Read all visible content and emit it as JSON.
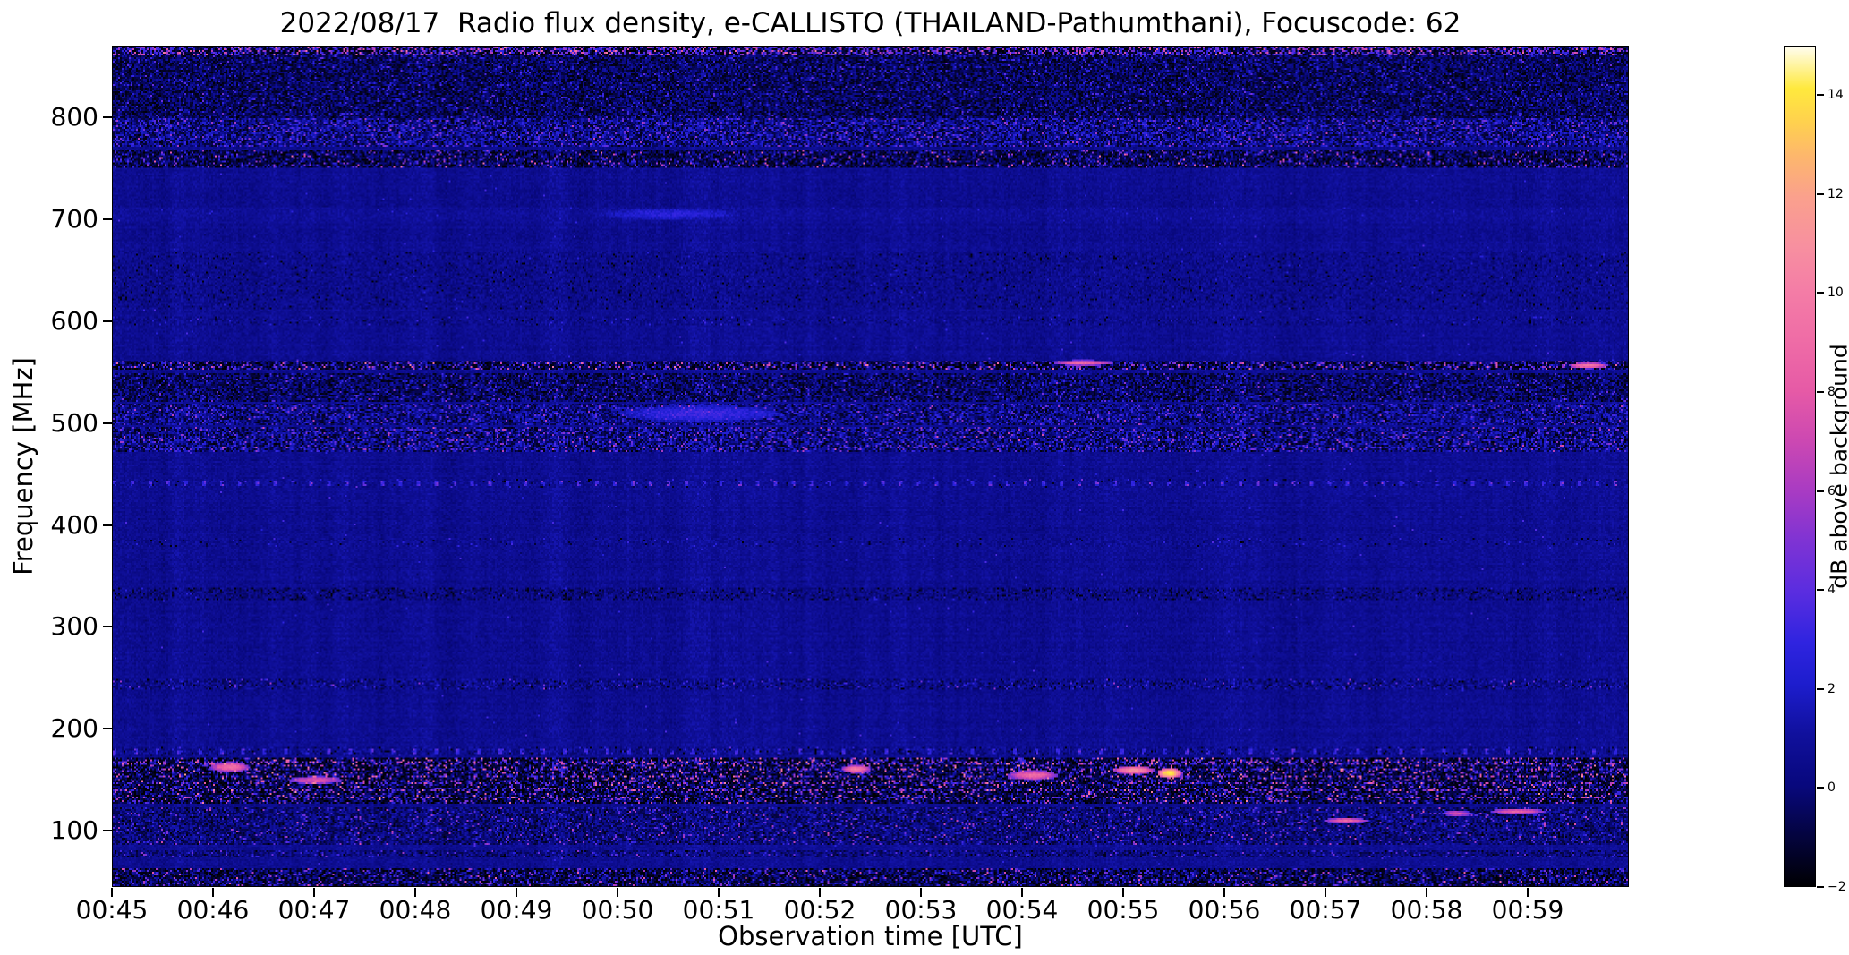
{
  "figure": {
    "date": "2022/08/17",
    "instrument": "e-CALLISTO",
    "station": "THAILAND-Pathumthani",
    "focuscode": "62"
  },
  "chart_data": {
    "type": "heatmap",
    "title": "2022/08/17  Radio flux density, e-CALLISTO (THAILAND-Pathumthani), Focuscode: 62",
    "xlabel": "Observation time [UTC]",
    "ylabel": "Frequency [MHz]",
    "colorbar_label": "dB above background",
    "x_range_minutes": [
      45,
      60
    ],
    "x_ticks": [
      {
        "minute": 45,
        "label": "00:45"
      },
      {
        "minute": 46,
        "label": "00:46"
      },
      {
        "minute": 47,
        "label": "00:47"
      },
      {
        "minute": 48,
        "label": "00:48"
      },
      {
        "minute": 49,
        "label": "00:49"
      },
      {
        "minute": 50,
        "label": "00:50"
      },
      {
        "minute": 51,
        "label": "00:51"
      },
      {
        "minute": 52,
        "label": "00:52"
      },
      {
        "minute": 53,
        "label": "00:53"
      },
      {
        "minute": 54,
        "label": "00:54"
      },
      {
        "minute": 55,
        "label": "00:55"
      },
      {
        "minute": 56,
        "label": "00:56"
      },
      {
        "minute": 57,
        "label": "00:57"
      },
      {
        "minute": 58,
        "label": "00:58"
      },
      {
        "minute": 59,
        "label": "00:59"
      }
    ],
    "freq_range": [
      45,
      870
    ],
    "y_ticks": [
      {
        "value": 800,
        "label": "800"
      },
      {
        "value": 700,
        "label": "700"
      },
      {
        "value": 600,
        "label": "600"
      },
      {
        "value": 500,
        "label": "500"
      },
      {
        "value": 400,
        "label": "400"
      },
      {
        "value": 300,
        "label": "300"
      },
      {
        "value": 200,
        "label": "200"
      },
      {
        "value": 100,
        "label": "100"
      }
    ],
    "value_range": [
      -2,
      15
    ],
    "colorbar_ticks": [
      {
        "value": 14,
        "label": "14"
      },
      {
        "value": 12,
        "label": "12"
      },
      {
        "value": 10,
        "label": "10"
      },
      {
        "value": 8,
        "label": "8"
      },
      {
        "value": 6,
        "label": "6"
      },
      {
        "value": 4,
        "label": "4"
      },
      {
        "value": 2,
        "label": "2"
      },
      {
        "value": 0,
        "label": "0"
      },
      {
        "value": -2,
        "label": "−2"
      }
    ],
    "colormap": [
      [
        0.0,
        "#000003"
      ],
      [
        0.06,
        "#04043f"
      ],
      [
        0.12,
        "#08087d"
      ],
      [
        0.18,
        "#10109c"
      ],
      [
        0.24,
        "#1d1dcd"
      ],
      [
        0.29,
        "#2f24e0"
      ],
      [
        0.35,
        "#5a2de0"
      ],
      [
        0.41,
        "#7e33d4"
      ],
      [
        0.47,
        "#a83bc3"
      ],
      [
        0.53,
        "#cc48b2"
      ],
      [
        0.59,
        "#e65aa6"
      ],
      [
        0.65,
        "#ef6ca6"
      ],
      [
        0.71,
        "#f47da6"
      ],
      [
        0.76,
        "#f78fa0"
      ],
      [
        0.82,
        "#faa08d"
      ],
      [
        0.87,
        "#fdb76c"
      ],
      [
        0.91,
        "#ffd14e"
      ],
      [
        0.95,
        "#ffe93d"
      ],
      [
        1.0,
        "#fffdf0"
      ]
    ],
    "background_db": 0.7,
    "rfi_bands": [
      {
        "f_lo": 862,
        "f_hi": 870,
        "base": -1.2,
        "noise": 1.2,
        "dark_p": 0.25,
        "speckle_p": 0.45,
        "speckle_max": 11
      },
      {
        "f_lo": 800,
        "f_hi": 862,
        "base": -0.2,
        "noise": 1.6,
        "dark_p": 0.22,
        "speckle_p": 0.05,
        "speckle_max": 5
      },
      {
        "f_lo": 772,
        "f_hi": 800,
        "base": 0.4,
        "noise": 2.0,
        "dark_p": 0.1,
        "speckle_p": 0.14,
        "speckle_max": 7
      },
      {
        "f_lo": 752,
        "f_hi": 768,
        "base": -0.4,
        "noise": 1.8,
        "dark_p": 0.25,
        "speckle_p": 0.1,
        "speckle_max": 10
      },
      {
        "f_lo": 700,
        "f_hi": 712,
        "base": 0.9,
        "noise": 0.5,
        "dark_p": 0.0,
        "speckle_p": 0.004,
        "speckle_max": 3
      },
      {
        "f_lo": 612,
        "f_hi": 668,
        "base": 0.55,
        "noise": 0.75,
        "dark_p": 0.04,
        "speckle_p": 0.003,
        "speckle_max": 2.5
      },
      {
        "f_lo": 596,
        "f_hi": 606,
        "base": 0.6,
        "noise": 0.8,
        "dark_p": 0.03,
        "speckle_p": 0.012,
        "speckle_max": 4
      },
      {
        "f_lo": 552,
        "f_hi": 562,
        "base": -0.5,
        "noise": 2.2,
        "dark_p": 0.28,
        "speckle_p": 0.2,
        "speckle_max": 11
      },
      {
        "f_lo": 520,
        "f_hi": 549,
        "base": -0.1,
        "noise": 1.7,
        "dark_p": 0.18,
        "speckle_p": 0.05,
        "speckle_max": 6
      },
      {
        "f_lo": 498,
        "f_hi": 519,
        "base": 0.4,
        "noise": 1.8,
        "dark_p": 0.08,
        "speckle_p": 0.09,
        "speckle_max": 7
      },
      {
        "f_lo": 472,
        "f_hi": 497,
        "base": 0.3,
        "noise": 2.0,
        "dark_p": 0.1,
        "speckle_p": 0.13,
        "speckle_max": 8
      },
      {
        "f_lo": 436,
        "f_hi": 445,
        "base": 0.7,
        "noise": 0.7,
        "dark_p": 0.02,
        "speckle_p": 0.03,
        "speckle_max": 6,
        "dots_period": 10,
        "dots_duty": 2
      },
      {
        "f_lo": 378,
        "f_hi": 388,
        "base": 0.7,
        "noise": 0.7,
        "dark_p": 0.02,
        "speckle_p": 0.015,
        "speckle_max": 4
      },
      {
        "f_lo": 326,
        "f_hi": 338,
        "base": 0.4,
        "noise": 0.9,
        "dark_p": 0.12,
        "speckle_p": 0.01,
        "speckle_max": 3
      },
      {
        "f_lo": 237,
        "f_hi": 249,
        "base": 0.5,
        "noise": 1.1,
        "dark_p": 0.06,
        "speckle_p": 0.035,
        "speckle_max": 7
      },
      {
        "f_lo": 172,
        "f_hi": 181,
        "base": 0.6,
        "noise": 0.9,
        "dark_p": 0.05,
        "speckle_p": 0.04,
        "speckle_max": 5,
        "dots_period": 12,
        "dots_duty": 2
      },
      {
        "f_lo": 125,
        "f_hi": 170,
        "base": -0.7,
        "noise": 2.2,
        "dark_p": 0.3,
        "speckle_p": 0.16,
        "speckle_max": 12,
        "lines": [
          166,
          159,
          152,
          145,
          138,
          131
        ]
      },
      {
        "f_lo": 85,
        "f_hi": 122,
        "base": 0.2,
        "noise": 1.4,
        "dark_p": 0.1,
        "speckle_p": 0.07,
        "speckle_max": 8
      },
      {
        "f_lo": 72,
        "f_hi": 80,
        "base": 0.3,
        "noise": 1.2,
        "dark_p": 0.08,
        "speckle_p": 0.05,
        "speckle_max": 6
      },
      {
        "f_lo": 45,
        "f_hi": 62,
        "base": -0.4,
        "noise": 2.0,
        "dark_p": 0.25,
        "speckle_p": 0.13,
        "speckle_max": 9
      }
    ],
    "hotspots": [
      {
        "t": 46.15,
        "f": 163,
        "dt": 0.2,
        "df": 5,
        "db": 9.5
      },
      {
        "t": 47.0,
        "f": 150,
        "dt": 0.28,
        "df": 4,
        "db": 8.0
      },
      {
        "t": 52.35,
        "f": 161,
        "dt": 0.15,
        "df": 4,
        "db": 10.0
      },
      {
        "t": 54.1,
        "f": 155,
        "dt": 0.25,
        "df": 5,
        "db": 9.0
      },
      {
        "t": 55.1,
        "f": 160,
        "dt": 0.2,
        "df": 4,
        "db": 11.0
      },
      {
        "t": 55.45,
        "f": 157,
        "dt": 0.12,
        "df": 5,
        "db": 14.5
      },
      {
        "t": 57.2,
        "f": 110,
        "dt": 0.22,
        "df": 3,
        "db": 8.5
      },
      {
        "t": 58.3,
        "f": 117,
        "dt": 0.15,
        "df": 3,
        "db": 7.5
      },
      {
        "t": 58.9,
        "f": 119,
        "dt": 0.28,
        "df": 3,
        "db": 8.5
      },
      {
        "t": 50.8,
        "f": 510,
        "dt": 0.8,
        "df": 8,
        "db": 3.2
      },
      {
        "t": 50.5,
        "f": 706,
        "dt": 0.7,
        "df": 6,
        "db": 2.6
      },
      {
        "t": 54.6,
        "f": 560,
        "dt": 0.3,
        "df": 3,
        "db": 9.0
      },
      {
        "t": 59.6,
        "f": 557,
        "dt": 0.2,
        "df": 3,
        "db": 9.5
      }
    ]
  }
}
